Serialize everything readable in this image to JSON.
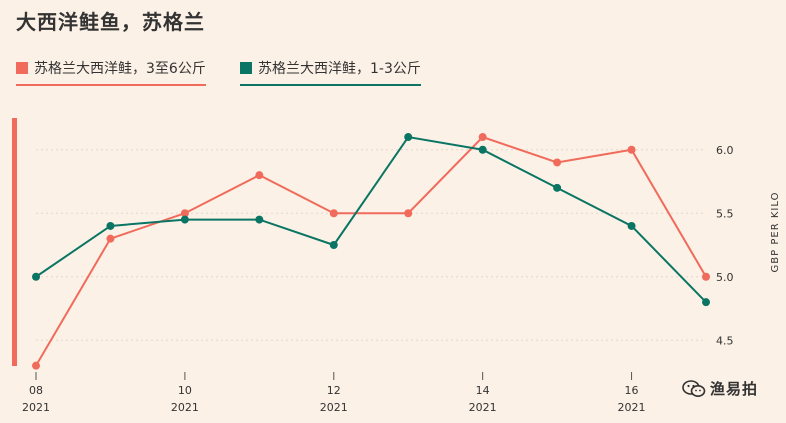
{
  "title": "大西洋鲑鱼，苏格兰",
  "watermark": {
    "text": "渔易拍",
    "icon": "wechat-icon"
  },
  "colors": {
    "series_a": "#f06b5b",
    "series_b": "#0a7564",
    "background": "#fcf1e6",
    "grid": "#e2d8cd"
  },
  "chart_data": {
    "type": "line",
    "x": [
      8,
      9,
      10,
      11,
      12,
      13,
      14,
      15,
      16,
      17
    ],
    "x_ticks": [
      {
        "value": 8,
        "label": "08",
        "sub": "2021"
      },
      {
        "value": 10,
        "label": "10",
        "sub": "2021"
      },
      {
        "value": 12,
        "label": "12",
        "sub": "2021"
      },
      {
        "value": 14,
        "label": "14",
        "sub": "2021"
      },
      {
        "value": 16,
        "label": "16",
        "sub": "2021"
      }
    ],
    "xlim": [
      8,
      17
    ],
    "ylim": [
      4.25,
      6.25
    ],
    "y_ticks": [
      "4.5",
      "5.0",
      "5.5",
      "6.0"
    ],
    "y_axis_side": "right",
    "ylabel": "GBP PER KILO",
    "grid": true,
    "legend_position": "top-left",
    "series": [
      {
        "name": "苏格兰大西洋鲑，3至6公斤",
        "color": "#f06b5b",
        "values": [
          4.3,
          5.3,
          5.5,
          5.8,
          5.5,
          5.5,
          6.1,
          5.9,
          6.0,
          5.0
        ]
      },
      {
        "name": "苏格兰大西洋鲑，1-3公斤",
        "color": "#0a7564",
        "values": [
          5.0,
          5.4,
          5.45,
          5.45,
          5.25,
          6.1,
          6.0,
          5.7,
          5.4,
          4.8
        ]
      }
    ]
  }
}
